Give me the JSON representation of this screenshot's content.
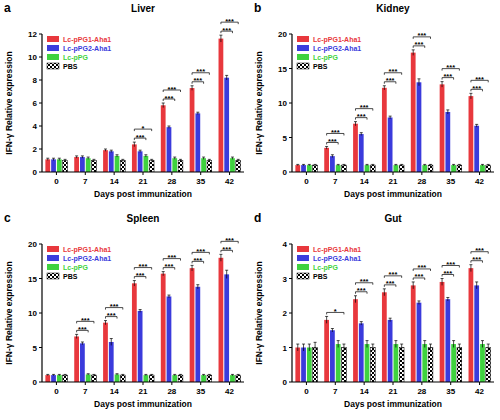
{
  "chart_data": [
    {
      "type": "bar",
      "label": "a",
      "title": "Liver",
      "x_label": "Days post immunization",
      "y_label": "IFN-γ Relative expression",
      "categories": [
        "0",
        "7",
        "14",
        "21",
        "28",
        "35",
        "42"
      ],
      "ylim": [
        0,
        12
      ],
      "yticks": [
        0,
        2,
        4,
        6,
        8,
        10,
        12
      ],
      "grid": false,
      "legend": "upper left",
      "series": [
        {
          "name": "Lc-pPG1-Aha1",
          "color": "#e8383d",
          "values": [
            1.1,
            1.3,
            1.9,
            2.4,
            5.8,
            7.3,
            11.6
          ],
          "errors": [
            0.1,
            0.1,
            0.1,
            0.2,
            0.2,
            0.2,
            0.3
          ]
        },
        {
          "name": "Lc-pPG2-Aha1",
          "color": "#3b3bdc",
          "values": [
            1.1,
            1.3,
            1.8,
            1.8,
            3.9,
            5.1,
            8.2
          ],
          "errors": [
            0.1,
            0.1,
            0.1,
            0.1,
            0.1,
            0.1,
            0.2
          ]
        },
        {
          "name": "Lc-pPG",
          "color": "#3fd23f",
          "values": [
            1.1,
            1.2,
            1.4,
            1.4,
            1.2,
            1.2,
            1.2
          ],
          "errors": [
            0.1,
            0.1,
            0.1,
            0.1,
            0.1,
            0.1,
            0.1
          ]
        },
        {
          "name": "PBS",
          "color": "#000000",
          "values": [
            1.0,
            1.0,
            1.0,
            1.0,
            1.0,
            1.0,
            1.0
          ],
          "errors": [
            0.1,
            0.1,
            0.1,
            0.1,
            0.1,
            0.1,
            0.1
          ]
        }
      ],
      "significance": [
        null,
        null,
        null,
        [
          "***",
          "*"
        ],
        [
          "***",
          "***"
        ],
        [
          "***",
          "***"
        ],
        [
          "***",
          "***"
        ]
      ]
    },
    {
      "type": "bar",
      "label": "b",
      "title": "Kidney",
      "x_label": "Days post immunization",
      "y_label": "IFN-γ Relative expression",
      "categories": [
        "0",
        "7",
        "14",
        "21",
        "28",
        "35",
        "42"
      ],
      "ylim": [
        0,
        20
      ],
      "yticks": [
        0,
        5,
        10,
        15,
        20
      ],
      "grid": false,
      "legend": "upper left",
      "series": [
        {
          "name": "Lc-pPG1-Aha1",
          "color": "#e8383d",
          "values": [
            1.0,
            3.5,
            7.0,
            12.2,
            17.3,
            12.7,
            11.0
          ],
          "errors": [
            0.1,
            0.2,
            0.3,
            0.3,
            0.4,
            0.4,
            0.4
          ]
        },
        {
          "name": "Lc-pPG2-Aha1",
          "color": "#3b3bdc",
          "values": [
            1.0,
            2.3,
            5.5,
            7.9,
            13.0,
            8.7,
            6.7
          ],
          "errors": [
            0.1,
            0.2,
            0.2,
            0.2,
            0.5,
            0.3,
            0.2
          ]
        },
        {
          "name": "Lc-pPG",
          "color": "#3fd23f",
          "values": [
            1.0,
            1.0,
            1.0,
            1.0,
            1.0,
            1.0,
            1.0
          ],
          "errors": [
            0.1,
            0.1,
            0.1,
            0.1,
            0.1,
            0.1,
            0.1
          ]
        },
        {
          "name": "PBS",
          "color": "#000000",
          "values": [
            1.0,
            1.0,
            1.0,
            1.0,
            1.0,
            1.0,
            1.0
          ],
          "errors": [
            0.1,
            0.1,
            0.1,
            0.1,
            0.1,
            0.1,
            0.1
          ]
        }
      ],
      "significance": [
        null,
        [
          "***",
          "***"
        ],
        [
          "***",
          "***"
        ],
        [
          "***",
          "***"
        ],
        [
          "***",
          "***"
        ],
        [
          "***",
          "***"
        ],
        [
          "***",
          "***"
        ]
      ]
    },
    {
      "type": "bar",
      "label": "c",
      "title": "Spleen",
      "x_label": "Days post immunization",
      "y_label": "IFN-γ Relative expression",
      "categories": [
        "0",
        "7",
        "14",
        "21",
        "28",
        "35",
        "42"
      ],
      "ylim": [
        0,
        20
      ],
      "yticks": [
        0,
        5,
        10,
        15,
        20
      ],
      "grid": false,
      "legend": "upper left",
      "series": [
        {
          "name": "Lc-pPG1-Aha1",
          "color": "#e8383d",
          "values": [
            1.0,
            6.6,
            8.6,
            14.3,
            15.7,
            16.5,
            18.0
          ],
          "errors": [
            0.1,
            0.3,
            0.3,
            0.4,
            0.3,
            0.4,
            0.5
          ]
        },
        {
          "name": "Lc-pPG2-Aha1",
          "color": "#3b3bdc",
          "values": [
            1.0,
            5.6,
            5.8,
            10.3,
            12.4,
            13.8,
            15.6
          ],
          "errors": [
            0.1,
            0.2,
            0.5,
            0.2,
            0.2,
            0.3,
            0.6
          ]
        },
        {
          "name": "Lc-pPG",
          "color": "#3fd23f",
          "values": [
            1.0,
            1.1,
            1.1,
            1.0,
            1.0,
            1.0,
            1.0
          ],
          "errors": [
            0.1,
            0.1,
            0.1,
            0.1,
            0.1,
            0.1,
            0.1
          ]
        },
        {
          "name": "PBS",
          "color": "#000000",
          "values": [
            1.0,
            1.0,
            1.0,
            1.0,
            1.0,
            1.0,
            1.0
          ],
          "errors": [
            0.1,
            0.1,
            0.1,
            0.1,
            0.1,
            0.1,
            0.1
          ]
        }
      ],
      "significance": [
        null,
        [
          "***",
          "***"
        ],
        [
          "***",
          "***"
        ],
        [
          "***",
          "***"
        ],
        [
          "***",
          "***"
        ],
        [
          "***",
          "***"
        ],
        [
          "***",
          "***"
        ]
      ]
    },
    {
      "type": "bar",
      "label": "d",
      "title": "Gut",
      "x_label": "Days post immunization",
      "y_label": "IFN-γ Relative expression",
      "categories": [
        "0",
        "7",
        "14",
        "21",
        "28",
        "35",
        "42"
      ],
      "ylim": [
        0,
        4
      ],
      "yticks": [
        0,
        1,
        2,
        3,
        4
      ],
      "grid": false,
      "legend": "upper left",
      "series": [
        {
          "name": "Lc-pPG1-Aha1",
          "color": "#e8383d",
          "values": [
            1.0,
            1.8,
            2.4,
            2.6,
            2.8,
            2.9,
            3.3
          ],
          "errors": [
            0.1,
            0.1,
            0.1,
            0.1,
            0.1,
            0.1,
            0.1
          ]
        },
        {
          "name": "Lc-pPG2-Aha1",
          "color": "#3b3bdc",
          "values": [
            1.0,
            1.5,
            1.7,
            1.8,
            2.3,
            2.4,
            2.8
          ],
          "errors": [
            0.1,
            0.05,
            0.05,
            0.05,
            0.05,
            0.05,
            0.1
          ]
        },
        {
          "name": "Lc-pPG",
          "color": "#3fd23f",
          "values": [
            1.0,
            1.1,
            1.1,
            1.1,
            1.1,
            1.1,
            1.1
          ],
          "errors": [
            0.1,
            0.1,
            0.1,
            0.1,
            0.1,
            0.1,
            0.1
          ]
        },
        {
          "name": "PBS",
          "color": "#000000",
          "values": [
            1.0,
            1.0,
            1.0,
            1.0,
            1.0,
            1.0,
            1.0
          ],
          "errors": [
            0.15,
            0.1,
            0.1,
            0.1,
            0.1,
            0.1,
            0.1
          ]
        }
      ],
      "significance": [
        null,
        [
          "*"
        ],
        [
          "***",
          "***"
        ],
        [
          "***",
          "***"
        ],
        [
          "***",
          "***"
        ],
        [
          "***",
          "***"
        ],
        [
          "***",
          "***"
        ]
      ]
    }
  ]
}
